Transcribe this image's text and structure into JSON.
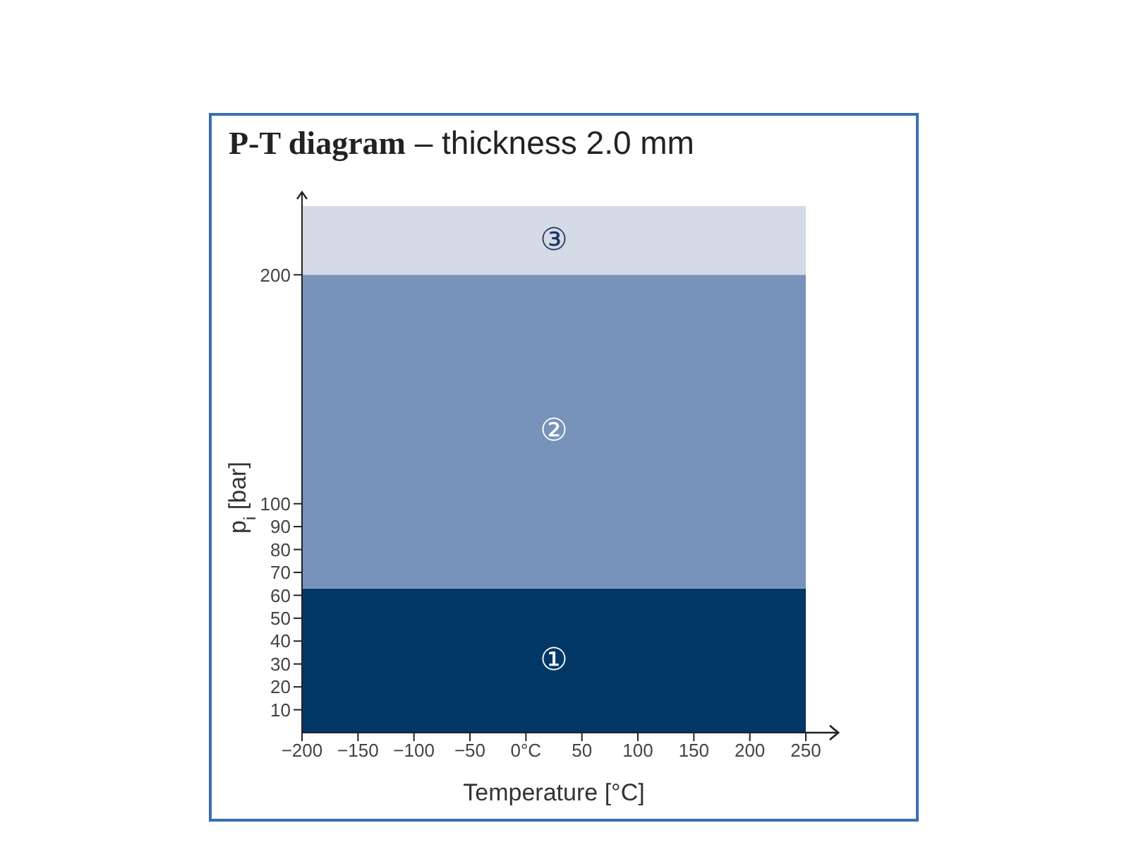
{
  "chart_data": {
    "type": "area",
    "title": "P-T diagram",
    "subtitle": "– thickness 2.0 mm",
    "xlabel": "Temperature [°C]",
    "ylabel": "p$_{i}$ [bar]",
    "x": [
      -200,
      250
    ],
    "stacked": true,
    "series": [
      {
        "name": "①",
        "color": "#013866",
        "values": [
          63,
          63
        ]
      },
      {
        "name": "②",
        "color": "#7893b9",
        "values": [
          137,
          137
        ]
      },
      {
        "name": "③",
        "color": "#d4dae6",
        "values": [
          30,
          30
        ]
      }
    ],
    "xlim": [
      -200,
      250
    ],
    "xticks": [
      {
        "value": -200,
        "label": "−200"
      },
      {
        "value": -150,
        "label": "−150"
      },
      {
        "value": -100,
        "label": "−100"
      },
      {
        "value": -50,
        "label": "−50"
      },
      {
        "value": 0,
        "label": "0°C"
      },
      50,
      100,
      150,
      200,
      250
    ],
    "ylim": [
      0,
      230
    ],
    "yticks": [
      10,
      20,
      30,
      40,
      50,
      60,
      70,
      80,
      90,
      100,
      200
    ]
  }
}
